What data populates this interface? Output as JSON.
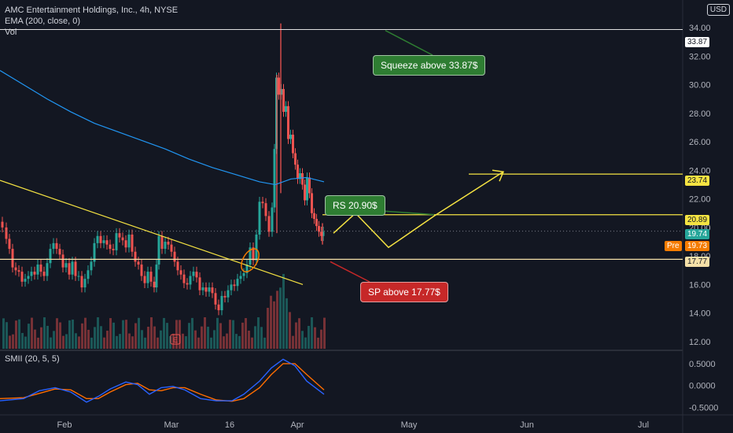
{
  "header": {
    "title": "AMC Entertainment Holdings, Inc., 4h, NYSE",
    "ema_label": "EMA (200, close, 0)",
    "vol_label": "Vol",
    "currency": "USD"
  },
  "indicator": {
    "label": "SMII (20, 5, 5)"
  },
  "annotations": {
    "squeeze": "Squeeze above 33.87$",
    "rs": "RS 20.90$",
    "sp": "SP above  17.77$",
    "earnings_marker": "E"
  },
  "price_tags": {
    "resistance_top": "33.87",
    "target": "23.74",
    "rs_line": "20.89",
    "last": "19.74",
    "pre_label": "Pre",
    "pre_price": "19.73",
    "support": "17.77"
  },
  "colors": {
    "background": "#131722",
    "up": "#26a69a",
    "down": "#ef5350",
    "ema": "#2196f3",
    "smi": "#2962ff",
    "signal": "#ff6d00",
    "yellow_lines": "#f5e342",
    "callout_green": "#2e7d32",
    "callout_red": "#c62828",
    "pre_tag": "#f57c00"
  },
  "chart_data": {
    "type": "candlestick",
    "interval": "4h",
    "x_axis_ticks": [
      "Feb",
      "Mar",
      "16",
      "Apr",
      "May",
      "Jun",
      "Jul"
    ],
    "y_axis_ticks": [
      "34.00",
      "32.00",
      "30.00",
      "28.00",
      "26.00",
      "24.00",
      "22.00",
      "20.00",
      "18.00",
      "16.00",
      "14.00",
      "12.00"
    ],
    "ylim": [
      11.5,
      35.0
    ],
    "indicator_ticks": [
      "0.5000",
      "0.0000",
      "-0.5000"
    ],
    "indicator_ylim": [
      -0.6,
      0.75
    ],
    "price_levels": [
      33.87,
      23.74,
      20.89,
      17.77
    ],
    "price_trend": [
      [
        0,
        20.4
      ],
      [
        6,
        20.0
      ],
      [
        10,
        19.2
      ],
      [
        14,
        18.5
      ],
      [
        18,
        17.2
      ],
      [
        22,
        17.0
      ],
      [
        26,
        16.9
      ],
      [
        30,
        16.2
      ],
      [
        34,
        16.4
      ],
      [
        38,
        16.6
      ],
      [
        42,
        16.9
      ],
      [
        46,
        16.7
      ],
      [
        50,
        17.4
      ],
      [
        54,
        16.9
      ],
      [
        58,
        16.6
      ],
      [
        62,
        17.5
      ],
      [
        66,
        18.5
      ],
      [
        70,
        18.9
      ],
      [
        74,
        18.5
      ],
      [
        78,
        18.1
      ],
      [
        82,
        17.2
      ],
      [
        86,
        17.5
      ],
      [
        90,
        16.7
      ],
      [
        94,
        17.6
      ],
      [
        98,
        16.6
      ],
      [
        102,
        16.6
      ],
      [
        106,
        15.8
      ],
      [
        110,
        16.4
      ],
      [
        114,
        17.0
      ],
      [
        118,
        17.6
      ],
      [
        122,
        18.9
      ],
      [
        126,
        19.4
      ],
      [
        130,
        18.9
      ],
      [
        134,
        19.1
      ],
      [
        138,
        18.8
      ],
      [
        142,
        18.5
      ],
      [
        146,
        18.4
      ],
      [
        150,
        19.6
      ],
      [
        154,
        19.3
      ],
      [
        158,
        19.1
      ],
      [
        162,
        18.6
      ],
      [
        166,
        19.5
      ],
      [
        170,
        18.3
      ],
      [
        174,
        17.6
      ],
      [
        178,
        17.4
      ],
      [
        182,
        16.6
      ],
      [
        186,
        16.1
      ],
      [
        190,
        16.9
      ],
      [
        194,
        16.2
      ],
      [
        198,
        15.8
      ],
      [
        200,
        17.4
      ],
      [
        204,
        19.4
      ],
      [
        208,
        18.5
      ],
      [
        212,
        19.0
      ],
      [
        216,
        18.8
      ],
      [
        220,
        18.3
      ],
      [
        224,
        17.6
      ],
      [
        228,
        17.0
      ],
      [
        232,
        16.7
      ],
      [
        236,
        16.1
      ],
      [
        240,
        16.0
      ],
      [
        244,
        16.6
      ],
      [
        248,
        16.9
      ],
      [
        252,
        16.5
      ],
      [
        256,
        15.6
      ],
      [
        260,
        15.8
      ],
      [
        264,
        15.5
      ],
      [
        268,
        15.8
      ],
      [
        272,
        15.4
      ],
      [
        276,
        14.6
      ],
      [
        280,
        14.2
      ],
      [
        284,
        15.2
      ],
      [
        288,
        15.1
      ],
      [
        292,
        15.6
      ],
      [
        296,
        16.0
      ],
      [
        300,
        15.9
      ],
      [
        304,
        16.4
      ],
      [
        308,
        16.6
      ],
      [
        312,
        16.8
      ],
      [
        316,
        17.4
      ],
      [
        320,
        18.6
      ],
      [
        324,
        17.7
      ],
      [
        328,
        19.5
      ],
      [
        332,
        21.8
      ],
      [
        336,
        21.7
      ],
      [
        340,
        20.8
      ],
      [
        344,
        19.7
      ],
      [
        348,
        21.4
      ],
      [
        350,
        25.5
      ],
      [
        353,
        30.5
      ],
      [
        356,
        29.3
      ],
      [
        359,
        29.7
      ],
      [
        362,
        28.1
      ],
      [
        365,
        28.5
      ],
      [
        368,
        26.2
      ],
      [
        371,
        26.5
      ],
      [
        374,
        25.2
      ],
      [
        377,
        24.4
      ],
      [
        380,
        23.4
      ],
      [
        383,
        23.8
      ],
      [
        386,
        23.0
      ],
      [
        389,
        21.9
      ],
      [
        392,
        23.5
      ],
      [
        395,
        22.4
      ],
      [
        398,
        21.0
      ],
      [
        401,
        20.6
      ],
      [
        404,
        20.1
      ],
      [
        407,
        19.7
      ],
      [
        410,
        19.4
      ],
      [
        412,
        19.7
      ]
    ],
    "candle_spikes": [
      {
        "x": 357,
        "high": 34.3,
        "low": 22.4
      },
      {
        "x": 352,
        "high": 30.7,
        "low": 19.6
      },
      {
        "x": 410,
        "high": 20.3,
        "low": 18.8
      }
    ],
    "ema_200": [
      [
        0,
        31.0
      ],
      [
        30,
        30.0
      ],
      [
        60,
        29.0
      ],
      [
        90,
        28.1
      ],
      [
        120,
        27.3
      ],
      [
        150,
        26.7
      ],
      [
        180,
        26.1
      ],
      [
        210,
        25.5
      ],
      [
        240,
        24.8
      ],
      [
        270,
        24.2
      ],
      [
        300,
        23.7
      ],
      [
        330,
        23.2
      ],
      [
        350,
        23.0
      ],
      [
        370,
        23.4
      ],
      [
        390,
        23.5
      ],
      [
        412,
        23.2
      ]
    ],
    "volume_note": "volume histogram bars along the bottom of the price pane",
    "smi": [
      [
        0,
        -0.35
      ],
      [
        30,
        -0.3
      ],
      [
        50,
        -0.12
      ],
      [
        70,
        -0.05
      ],
      [
        90,
        -0.15
      ],
      [
        110,
        -0.38
      ],
      [
        125,
        -0.25
      ],
      [
        140,
        -0.08
      ],
      [
        160,
        0.08
      ],
      [
        175,
        0.02
      ],
      [
        190,
        -0.2
      ],
      [
        205,
        -0.05
      ],
      [
        220,
        -0.02
      ],
      [
        235,
        -0.1
      ],
      [
        255,
        -0.3
      ],
      [
        275,
        -0.35
      ],
      [
        295,
        -0.35
      ],
      [
        310,
        -0.2
      ],
      [
        330,
        0.1
      ],
      [
        345,
        0.4
      ],
      [
        360,
        0.6
      ],
      [
        375,
        0.45
      ],
      [
        390,
        0.1
      ],
      [
        412,
        -0.2
      ]
    ],
    "smi_signal": [
      [
        0,
        -0.3
      ],
      [
        30,
        -0.28
      ],
      [
        50,
        -0.18
      ],
      [
        70,
        -0.08
      ],
      [
        90,
        -0.1
      ],
      [
        110,
        -0.3
      ],
      [
        125,
        -0.3
      ],
      [
        140,
        -0.15
      ],
      [
        160,
        0.02
      ],
      [
        175,
        0.05
      ],
      [
        190,
        -0.1
      ],
      [
        205,
        -0.12
      ],
      [
        220,
        -0.05
      ],
      [
        235,
        -0.05
      ],
      [
        255,
        -0.2
      ],
      [
        275,
        -0.33
      ],
      [
        295,
        -0.36
      ],
      [
        310,
        -0.3
      ],
      [
        330,
        -0.05
      ],
      [
        345,
        0.25
      ],
      [
        360,
        0.5
      ],
      [
        375,
        0.5
      ],
      [
        390,
        0.25
      ],
      [
        412,
        -0.1
      ]
    ]
  }
}
